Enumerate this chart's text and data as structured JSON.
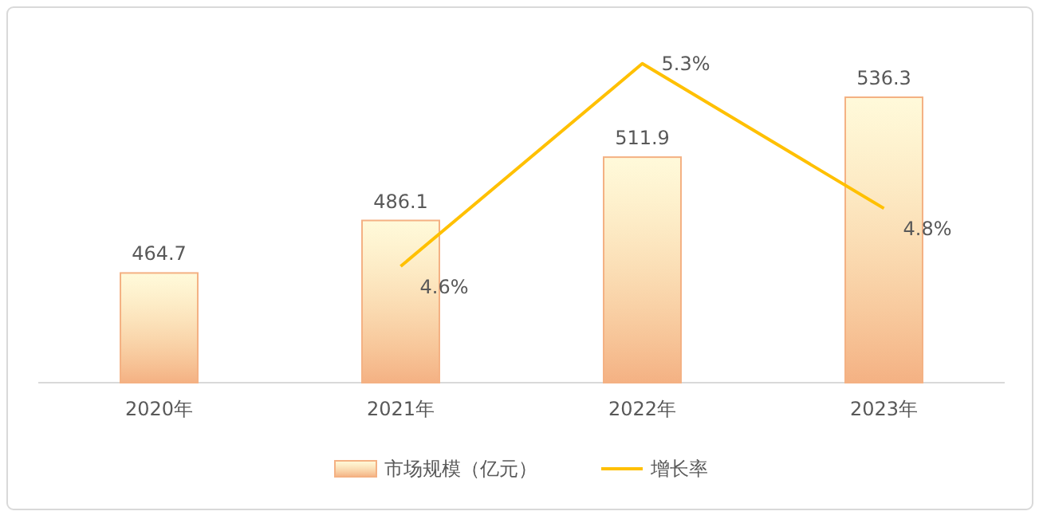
{
  "chart_data": {
    "type": "bar",
    "categories": [
      "2020年",
      "2021年",
      "2022年",
      "2023年"
    ],
    "series": [
      {
        "name": "市场规模（亿元）",
        "color": "#f4b183",
        "values": [
          464.7,
          486.1,
          511.9,
          536.3
        ]
      },
      {
        "name": "增长率",
        "type": "line",
        "axis": "y2",
        "color": "#ffc000",
        "values": [
          null,
          4.6,
          5.3,
          4.8
        ],
        "value_labels": [
          null,
          "4.6%",
          "5.3%",
          "4.8%"
        ]
      }
    ],
    "ylim": [
      420,
      536.3
    ],
    "tick_labels": "x",
    "data_labels": true,
    "legend": "bottom",
    "grid": false,
    "marker": "none"
  }
}
